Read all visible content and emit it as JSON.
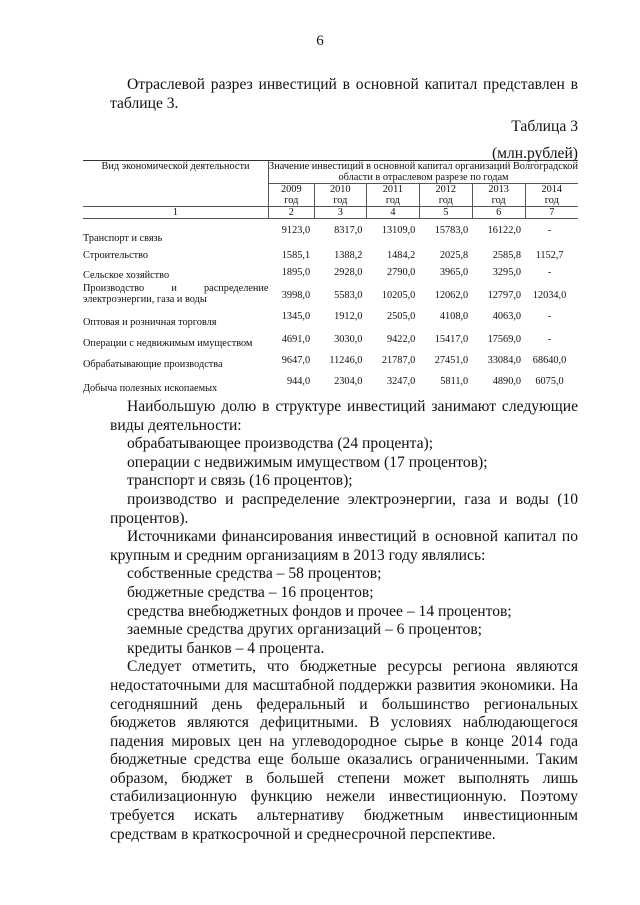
{
  "page_number": "6",
  "intro": "Отраслевой разрез инвестиций в основной капитал представлен в таблице 3.",
  "table_label": "Таблица 3",
  "units": "(млн.рублей)",
  "table": {
    "col1_header": "Вид экономической деятельности",
    "group_header": "Значение инвестиций в основной капитал организаций Волгоградской области в отраслевом разрезе по годам",
    "years": [
      "2009",
      "2010",
      "2011",
      "2012",
      "2013",
      "2014"
    ],
    "year_suffix": "год",
    "col_numbers": [
      "1",
      "2",
      "3",
      "4",
      "5",
      "6",
      "7"
    ],
    "rows": [
      {
        "name": "Транспорт и связь",
        "values": [
          "9123,0",
          "8317,0",
          "13109,0",
          "15783,0",
          "16122,0",
          "-"
        ]
      },
      {
        "name": "Строительство",
        "values": [
          "1585,1",
          "1388,2",
          "1484,2",
          "2025,8",
          "2585,8",
          "1152,7"
        ]
      },
      {
        "name": "Сельское хозяйство",
        "values": [
          "1895,0",
          "2928,0",
          "2790,0",
          "3965,0",
          "3295,0",
          "-"
        ]
      },
      {
        "name": "Производство и распределение электроэнергии, газа и воды",
        "values": [
          "3998,0",
          "5583,0",
          "10205,0",
          "12062,0",
          "12797,0",
          "12034,0"
        ]
      },
      {
        "name": "Оптовая и розничная торговля",
        "values": [
          "1345,0",
          "1912,0",
          "2505,0",
          "4108,0",
          "4063,0",
          "-"
        ]
      },
      {
        "name": "Операции с недвижимым имуществом",
        "values": [
          "4691,0",
          "3030,0",
          "9422,0",
          "15417,0",
          "17569,0",
          "-"
        ]
      },
      {
        "name": "Обрабатывающие производства",
        "values": [
          "9647,0",
          "11246,0",
          "21787,0",
          "27451,0",
          "33084,0",
          "68640,0"
        ]
      },
      {
        "name": "Добыча полезных ископаемых",
        "values": [
          "944,0",
          "2304,0",
          "3247,0",
          "5811,0",
          "4890,0",
          "6075,0"
        ]
      }
    ]
  },
  "body": [
    "Наибольшую долю в структуре инвестиций занимают следующие виды деятельности:",
    "обрабатывающее производства (24 процента);",
    "операции с недвижимым имуществом (17 процентов);",
    "транспорт и связь (16 процентов);",
    "производство и распределение электроэнергии, газа и воды (10 процентов).",
    "Источниками финансирования инвестиций в основной капитал по крупным и средним организациям в 2013 году являлись:",
    "собственные средства – 58 процентов;",
    "бюджетные средства – 16 процентов;",
    "средства внебюджетных фондов и прочее – 14 процентов;",
    "заемные средства других организаций – 6 процентов;",
    "кредиты банков – 4 процента.",
    "Следует отметить, что бюджетные ресурсы региона являются недостаточными для масштабной поддержки развития экономики. На сегодняшний день федеральный и большинство региональных бюджетов являются дефицитными. В условиях наблюдающегося падения мировых цен на углеводородное сырье в конце 2014 года бюджетные средства еще больше оказались ограниченными. Таким образом, бюджет в большей степени может выполнять лишь стабилизационную функцию нежели инвестиционную. Поэтому требуется искать альтернативу бюджетным инвестиционным средствам в краткосрочной и среднесрочной перспективе."
  ]
}
